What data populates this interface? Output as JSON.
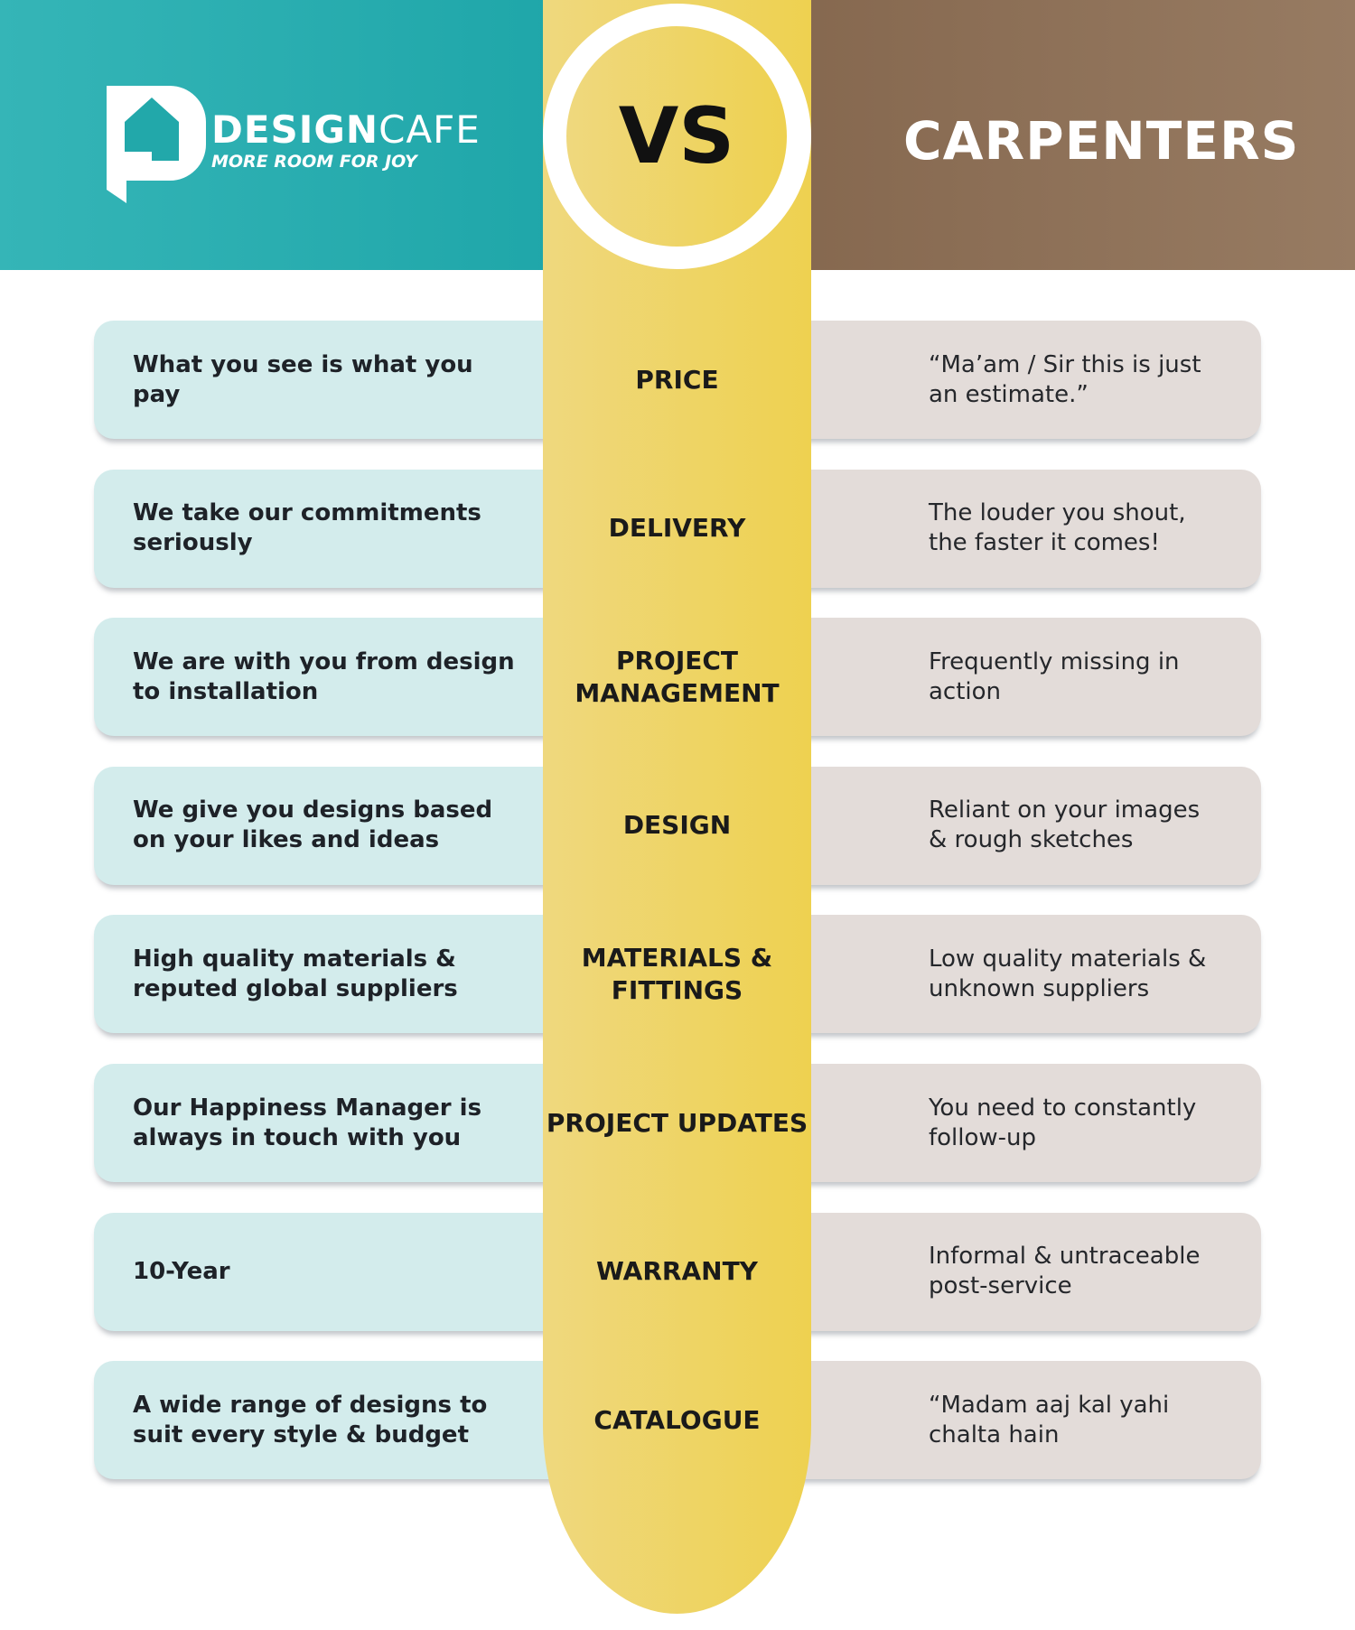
{
  "header": {
    "brand_name_bold": "DESIGN",
    "brand_name_light": "CAFE",
    "brand_tagline": "MORE ROOM FOR JOY",
    "vs": "VS",
    "competitor": "CARPENTERS"
  },
  "colors": {
    "designcafe": "#1aa3a6",
    "carpenters": "#8b6d53",
    "center": "#eed150",
    "left_card": "#d3ecec",
    "right_card": "#e3dcd9"
  },
  "rows": [
    {
      "category": "PRICE",
      "designcafe": "What you see is what you pay",
      "carpenters": "“Ma’am / Sir this is just an estimate.”"
    },
    {
      "category": "DELIVERY",
      "designcafe": "We take our commitments seriously",
      "carpenters": "The louder you shout, the faster it comes!"
    },
    {
      "category": "PROJECT MANAGEMENT",
      "designcafe": "We are with you from design to installation",
      "carpenters": "Frequently missing in action"
    },
    {
      "category": "DESIGN",
      "designcafe": "We give you designs based on your likes and ideas",
      "carpenters": "Reliant on your images & rough sketches"
    },
    {
      "category": "MATERIALS & FITTINGS",
      "designcafe": "High quality materials & reputed global suppliers",
      "carpenters": "Low quality materials & unknown suppliers"
    },
    {
      "category": "PROJECT UPDATES",
      "designcafe": "Our Happiness Manager is always in touch with you",
      "carpenters": "You need to constantly follow-up"
    },
    {
      "category": "WARRANTY",
      "designcafe": "10-Year",
      "carpenters": "Informal & untraceable post-service"
    },
    {
      "category": "CATALOGUE",
      "designcafe": "A wide range of designs to suit every style & budget",
      "carpenters": "“Madam aaj kal yahi chalta hain"
    }
  ]
}
